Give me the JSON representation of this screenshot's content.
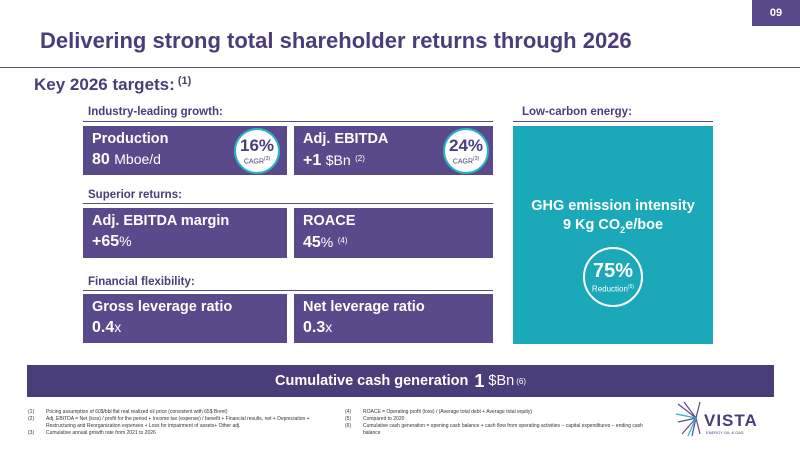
{
  "page_number": "09",
  "title": "Delivering strong total shareholder returns through 2026",
  "subtitle": {
    "text": "Key 2026 targets:",
    "note": "(1)"
  },
  "sections": {
    "growth": {
      "label": "Industry-leading growth:",
      "cards": [
        {
          "label": "Production",
          "value": "80",
          "unit": "Mboe/d",
          "badge": {
            "pct": "16%",
            "text": "CAGR",
            "note": "(3)"
          }
        },
        {
          "label": "Adj. EBITDA",
          "value": "+1",
          "unit": "$Bn",
          "note": "(2)",
          "badge": {
            "pct": "24%",
            "text": "CAGR",
            "note": "(3)"
          }
        }
      ]
    },
    "returns": {
      "label": "Superior returns:",
      "cards": [
        {
          "label": "Adj. EBITDA margin",
          "value": "+65",
          "unit": "%"
        },
        {
          "label": "ROACE",
          "value": "45",
          "unit": "%",
          "note": "(4)"
        }
      ]
    },
    "flexibility": {
      "label": "Financial flexibility:",
      "cards": [
        {
          "label": "Gross leverage ratio",
          "value": "0.4",
          "unit": "x"
        },
        {
          "label": "Net leverage ratio",
          "value": "0.3",
          "unit": "x"
        }
      ]
    },
    "low_carbon": {
      "label": "Low-carbon energy:",
      "ghg_label": "GHG emission intensity",
      "ghg_value_prefix": "9 Kg CO",
      "ghg_value_sub": "2",
      "ghg_value_suffix": "e/boe",
      "badge": {
        "pct": "75%",
        "text": "Reduction",
        "note": "(5)"
      }
    }
  },
  "cash_generation": {
    "label": "Cumulative cash generation",
    "value": "1",
    "unit": "$Bn",
    "note": "(6)"
  },
  "footnotes": [
    {
      "n": "(1)",
      "t": "Pricing assumption of 60$/bbl flat real realized oil price (consistent with 65$ Brent)"
    },
    {
      "n": "(2)",
      "t": "Adj. EBITDA = Net (loss) / profit for the period + Income tax (expense) / benefit + Financial results, net + Depreciation + Restructuring and Reorganization expenses + Loss for impairment of assets+ Other adj."
    },
    {
      "n": "(3)",
      "t": "Cumulative annual growth rate from 2021 to 2026"
    },
    {
      "n": "(4)",
      "t": "ROACE = Operating profit (loss) / (Average total debt + Average total equity)"
    },
    {
      "n": "(5)",
      "t": "Compared to 2020"
    },
    {
      "n": "(6)",
      "t": "Cumulative cash generation = opening cash balance + cash flow from operating activities − capital expenditures − ending cash balance"
    }
  ],
  "logo": {
    "name": "VISTA",
    "tagline": "ENERGY OIL & GAS"
  },
  "colors": {
    "purple": "#5b4a8b",
    "dark_purple": "#4a3d7a",
    "teal": "#1ba9b9"
  }
}
